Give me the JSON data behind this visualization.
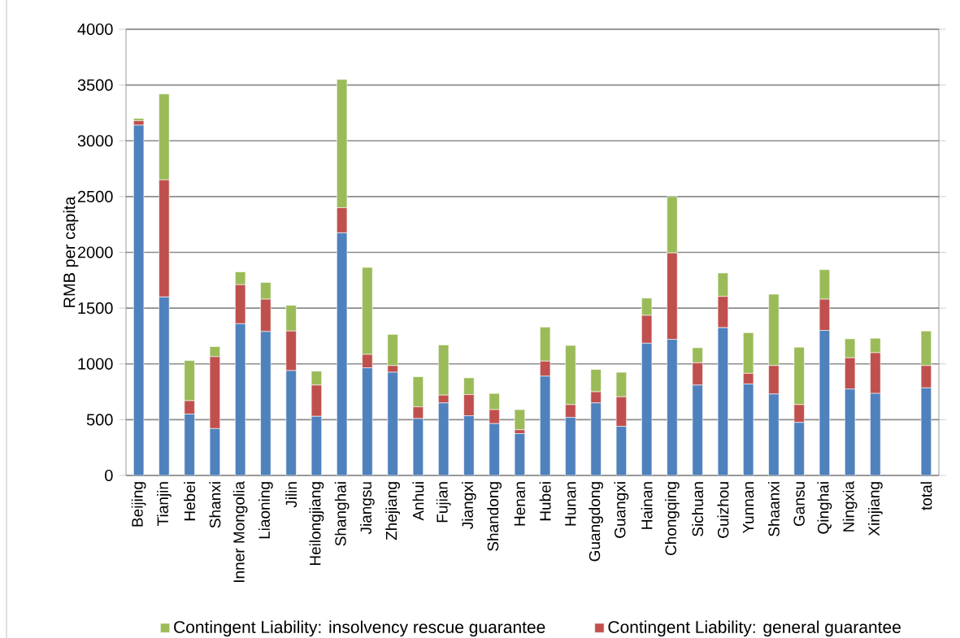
{
  "chart_data": {
    "type": "bar",
    "stacked": true,
    "ylabel": "RMB per capita",
    "categories": [
      "Beijing",
      "Tianjin",
      "Hebei",
      "Shanxi",
      "Inner Mongolia",
      "Liaoning",
      "Jilin",
      "Heilongjiang",
      "Shanghai",
      "Jiangsu",
      "Zhejiang",
      "Anhui",
      "Fujian",
      "Jiangxi",
      "Shandong",
      "Henan",
      "Hubei",
      "Hunan",
      "Guangdong",
      "Guangxi",
      "Hainan",
      "Chongqing",
      "Sichuan",
      "Guizhou",
      "Yunnan",
      "Shaanxi",
      "Gansu",
      "Qinghai",
      "Ningxia",
      "Xinjiang",
      null,
      "total"
    ],
    "series": [
      {
        "color": "#4f81bd",
        "values": [
          3140,
          1600,
          550,
          420,
          1360,
          1290,
          940,
          530,
          2175,
          965,
          925,
          510,
          650,
          535,
          465,
          375,
          890,
          520,
          650,
          440,
          1185,
          1220,
          810,
          1325,
          820,
          730,
          475,
          1300,
          775,
          735,
          null,
          785
        ]
      },
      {
        "name": "Contingent Liability: general guarantee",
        "color": "#c0504d",
        "values": [
          40,
          1050,
          120,
          645,
          350,
          290,
          355,
          280,
          225,
          120,
          60,
          105,
          70,
          190,
          125,
          35,
          135,
          115,
          100,
          265,
          250,
          775,
          200,
          280,
          95,
          255,
          160,
          280,
          280,
          365,
          null,
          200
        ]
      },
      {
        "name": "Contingent Liability: insolvency rescue guarantee",
        "color": "#9bbb59",
        "values": [
          20,
          770,
          360,
          90,
          115,
          150,
          230,
          125,
          1150,
          780,
          280,
          270,
          450,
          150,
          145,
          180,
          305,
          530,
          200,
          220,
          155,
          505,
          135,
          210,
          365,
          640,
          515,
          265,
          170,
          130,
          null,
          310
        ]
      }
    ],
    "ylim": [
      0,
      4000
    ],
    "yticks": [
      0,
      500,
      1000,
      1500,
      2000,
      2500,
      3000,
      3500,
      4000
    ],
    "grid": "y",
    "legend": "bottom"
  }
}
